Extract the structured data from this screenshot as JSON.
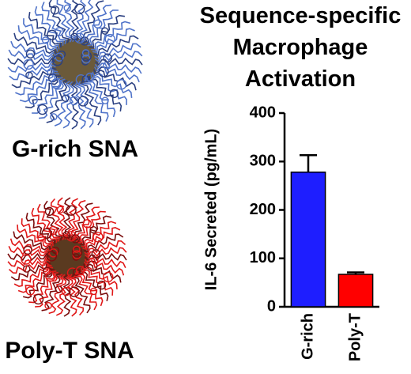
{
  "chart_data": {
    "type": "bar",
    "title": "Sequence-specific Macrophage Activation",
    "ylabel": "IL-6 Secreted (pg/mL)",
    "categories": [
      "G-rich",
      "Poly-T"
    ],
    "values": [
      278,
      67
    ],
    "errors": [
      35,
      4
    ],
    "colors": [
      "#1e1eff",
      "#ff0000"
    ],
    "ylim": [
      0,
      400
    ],
    "yticks": [
      0,
      100,
      200,
      300,
      400
    ],
    "annotations": [
      "G-rich SNA",
      "Poly-T SNA"
    ]
  }
}
